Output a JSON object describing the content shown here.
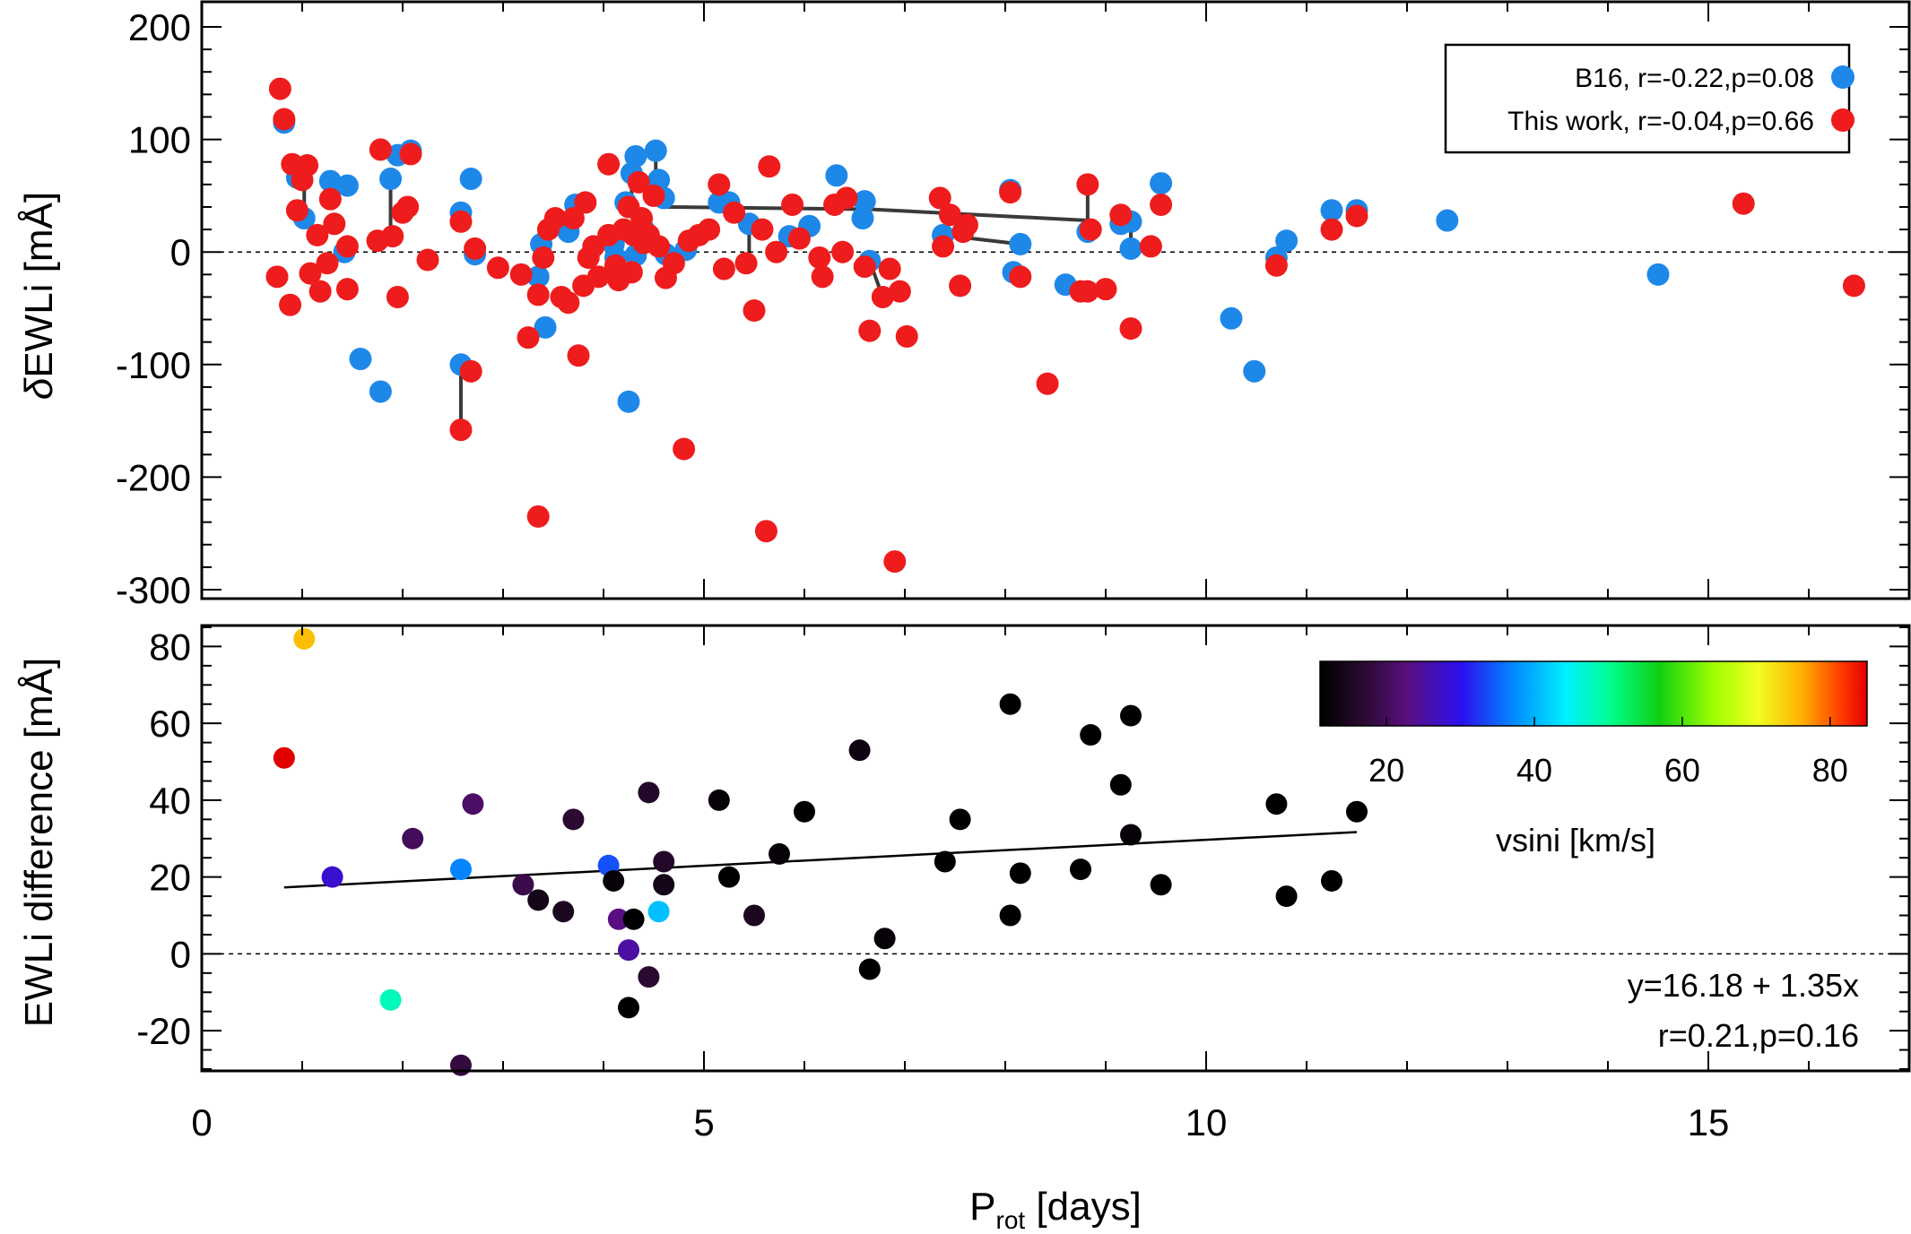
{
  "chart_data": [
    {
      "type": "scatter",
      "panel": "top",
      "ylabel_prefix": "δ",
      "ylabel_main": "EWLi [mÅ]",
      "xlim": [
        0,
        17
      ],
      "ylim": [
        -300,
        200
      ],
      "xticks": [
        0,
        5,
        10,
        15
      ],
      "yticks": [
        200,
        100,
        0,
        -100,
        -200,
        -300
      ],
      "ytick_labels": [
        "200",
        "100",
        "0",
        "-100",
        "-200",
        "-300"
      ],
      "zero_line": "dashed",
      "legend": {
        "placement": "top-right",
        "entries": [
          {
            "label": "B16, r=-0.22,p=0.08",
            "color": "#1e88e8"
          },
          {
            "label": "This work, r=-0.04,p=0.66",
            "color": "#ee1c1c"
          }
        ]
      },
      "series": [
        {
          "name": "B16",
          "color": "#1e88e8",
          "points": [
            [
              0.82,
              115
            ],
            [
              0.95,
              66
            ],
            [
              1.02,
              30
            ],
            [
              1.28,
              63
            ],
            [
              1.42,
              0
            ],
            [
              1.45,
              59
            ],
            [
              1.58,
              -95
            ],
            [
              1.78,
              -124
            ],
            [
              1.88,
              65
            ],
            [
              1.95,
              86
            ],
            [
              2.08,
              90
            ],
            [
              2.58,
              35
            ],
            [
              2.58,
              -100
            ],
            [
              2.68,
              65
            ],
            [
              2.72,
              -2
            ],
            [
              3.35,
              -22
            ],
            [
              3.38,
              7
            ],
            [
              3.42,
              -67
            ],
            [
              3.65,
              18
            ],
            [
              3.72,
              42
            ],
            [
              4.1,
              7
            ],
            [
              4.12,
              -5
            ],
            [
              4.22,
              44
            ],
            [
              4.25,
              -133
            ],
            [
              4.28,
              70
            ],
            [
              4.32,
              85
            ],
            [
              4.32,
              -3
            ],
            [
              4.4,
              20
            ],
            [
              4.52,
              90
            ],
            [
              4.55,
              64
            ],
            [
              4.6,
              48
            ],
            [
              4.62,
              -2
            ],
            [
              4.82,
              2
            ],
            [
              5.15,
              44
            ],
            [
              5.25,
              44
            ],
            [
              5.45,
              25
            ],
            [
              5.85,
              14
            ],
            [
              6.05,
              23
            ],
            [
              6.32,
              68
            ],
            [
              6.58,
              30
            ],
            [
              6.6,
              45
            ],
            [
              6.65,
              -8
            ],
            [
              7.38,
              15
            ],
            [
              8.05,
              55
            ],
            [
              8.08,
              -18
            ],
            [
              8.15,
              7
            ],
            [
              8.6,
              -29
            ],
            [
              8.82,
              18
            ],
            [
              9.15,
              25
            ],
            [
              9.25,
              3
            ],
            [
              9.25,
              27
            ],
            [
              9.55,
              61
            ],
            [
              10.25,
              -59
            ],
            [
              10.48,
              -106
            ],
            [
              10.7,
              -5
            ],
            [
              10.8,
              10
            ],
            [
              11.25,
              37
            ],
            [
              11.5,
              37
            ],
            [
              12.4,
              28
            ],
            [
              14.5,
              -20
            ]
          ]
        },
        {
          "name": "This work",
          "color": "#ee1c1c",
          "points": [
            [
              0.75,
              -22
            ],
            [
              0.78,
              145
            ],
            [
              0.82,
              118
            ],
            [
              0.88,
              -47
            ],
            [
              0.9,
              78
            ],
            [
              0.95,
              37
            ],
            [
              1.0,
              64
            ],
            [
              1.05,
              77
            ],
            [
              1.08,
              -19
            ],
            [
              1.15,
              15
            ],
            [
              1.18,
              -35
            ],
            [
              1.25,
              -10
            ],
            [
              1.28,
              47
            ],
            [
              1.32,
              25
            ],
            [
              1.45,
              -33
            ],
            [
              1.45,
              5
            ],
            [
              1.75,
              10
            ],
            [
              1.78,
              91
            ],
            [
              1.9,
              14
            ],
            [
              1.95,
              -40
            ],
            [
              2.0,
              35
            ],
            [
              2.05,
              40
            ],
            [
              2.08,
              87
            ],
            [
              2.25,
              -7
            ],
            [
              2.58,
              27
            ],
            [
              2.58,
              -158
            ],
            [
              2.68,
              -106
            ],
            [
              2.72,
              3
            ],
            [
              2.95,
              -14
            ],
            [
              3.18,
              -20
            ],
            [
              3.25,
              -76
            ],
            [
              3.35,
              -38
            ],
            [
              3.35,
              -235
            ],
            [
              3.4,
              -5
            ],
            [
              3.45,
              20
            ],
            [
              3.52,
              30
            ],
            [
              3.58,
              -40
            ],
            [
              3.65,
              -45
            ],
            [
              3.7,
              30
            ],
            [
              3.75,
              -92
            ],
            [
              3.8,
              -30
            ],
            [
              3.82,
              44
            ],
            [
              3.85,
              -5
            ],
            [
              3.9,
              5
            ],
            [
              3.95,
              -22
            ],
            [
              4.05,
              78
            ],
            [
              4.05,
              15
            ],
            [
              4.12,
              -12
            ],
            [
              4.15,
              -25
            ],
            [
              4.2,
              20
            ],
            [
              4.25,
              40
            ],
            [
              4.28,
              -18
            ],
            [
              4.3,
              15
            ],
            [
              4.35,
              62
            ],
            [
              4.38,
              30
            ],
            [
              4.4,
              8
            ],
            [
              4.45,
              15
            ],
            [
              4.5,
              50
            ],
            [
              4.55,
              5
            ],
            [
              4.62,
              -23
            ],
            [
              4.7,
              -10
            ],
            [
              4.8,
              -175
            ],
            [
              4.85,
              10
            ],
            [
              4.95,
              15
            ],
            [
              5.05,
              20
            ],
            [
              5.15,
              60
            ],
            [
              5.2,
              -15
            ],
            [
              5.3,
              35
            ],
            [
              5.42,
              -10
            ],
            [
              5.5,
              -52
            ],
            [
              5.58,
              20
            ],
            [
              5.62,
              -248
            ],
            [
              5.65,
              76
            ],
            [
              5.72,
              0
            ],
            [
              5.88,
              42
            ],
            [
              5.95,
              12
            ],
            [
              6.15,
              -5
            ],
            [
              6.18,
              -22
            ],
            [
              6.3,
              42
            ],
            [
              6.38,
              0
            ],
            [
              6.42,
              48
            ],
            [
              6.6,
              -13
            ],
            [
              6.65,
              -70
            ],
            [
              6.78,
              -40
            ],
            [
              6.9,
              -275
            ],
            [
              6.95,
              -35
            ],
            [
              7.02,
              -75
            ],
            [
              6.85,
              -15
            ],
            [
              7.35,
              48
            ],
            [
              7.38,
              5
            ],
            [
              7.45,
              33
            ],
            [
              7.55,
              -30
            ],
            [
              7.58,
              18
            ],
            [
              7.62,
              24
            ],
            [
              8.05,
              53
            ],
            [
              8.15,
              -22
            ],
            [
              8.42,
              -117
            ],
            [
              8.75,
              -35
            ],
            [
              8.82,
              -35
            ],
            [
              8.82,
              60
            ],
            [
              8.85,
              20
            ],
            [
              9.0,
              -33
            ],
            [
              9.15,
              33
            ],
            [
              9.25,
              -68
            ],
            [
              9.55,
              42
            ],
            [
              9.45,
              5
            ],
            [
              10.7,
              -12
            ],
            [
              11.25,
              20
            ],
            [
              11.5,
              32
            ],
            [
              15.35,
              43
            ],
            [
              16.45,
              -30
            ]
          ]
        }
      ],
      "connectors": [
        [
          [
            0.82,
            115
          ],
          [
            0.82,
            118
          ]
        ],
        [
          [
            1.02,
            30
          ],
          [
            1.02,
            66
          ]
        ],
        [
          [
            1.28,
            63
          ],
          [
            1.28,
            47
          ]
        ],
        [
          [
            1.88,
            65
          ],
          [
            1.88,
            14
          ]
        ],
        [
          [
            2.58,
            -100
          ],
          [
            2.58,
            -158
          ]
        ],
        [
          [
            2.58,
            35
          ],
          [
            2.58,
            27
          ]
        ],
        [
          [
            3.38,
            7
          ],
          [
            3.38,
            -38
          ]
        ],
        [
          [
            3.72,
            42
          ],
          [
            3.72,
            20
          ]
        ],
        [
          [
            4.12,
            -5
          ],
          [
            4.12,
            -25
          ]
        ],
        [
          [
            4.28,
            70
          ],
          [
            4.28,
            40
          ]
        ],
        [
          [
            4.52,
            90
          ],
          [
            4.52,
            64
          ]
        ],
        [
          [
            4.62,
            -2
          ],
          [
            4.62,
            -23
          ]
        ],
        [
          [
            4.62,
            40
          ],
          [
            6.65,
            38
          ]
        ],
        [
          [
            6.65,
            38
          ],
          [
            8.82,
            28
          ]
        ],
        [
          [
            5.45,
            25
          ],
          [
            5.45,
            -10
          ]
        ],
        [
          [
            6.65,
            -8
          ],
          [
            6.78,
            -40
          ]
        ],
        [
          [
            7.38,
            15
          ],
          [
            8.15,
            7
          ]
        ],
        [
          [
            8.82,
            60
          ],
          [
            8.82,
            18
          ]
        ],
        [
          [
            9.25,
            27
          ],
          [
            9.25,
            3
          ]
        ],
        [
          [
            10.7,
            -5
          ],
          [
            10.8,
            10
          ]
        ]
      ]
    },
    {
      "type": "scatter",
      "panel": "bottom",
      "xlabel_main": "P",
      "xlabel_sub": "rot",
      "xlabel_tail": " [days]",
      "ylabel": "EWLi difference [mÅ]",
      "xlim": [
        0,
        17
      ],
      "ylim": [
        -30,
        85
      ],
      "xticks": [
        0,
        5,
        10,
        15
      ],
      "yticks": [
        80,
        60,
        40,
        20,
        0,
        -20
      ],
      "zero_line": "dashed",
      "points": [
        [
          1.02,
          82,
          75
        ],
        [
          0.82,
          51,
          85
        ],
        [
          1.3,
          20,
          28
        ],
        [
          2.1,
          30,
          20
        ],
        [
          2.7,
          39,
          21
        ],
        [
          2.58,
          22,
          37
        ],
        [
          1.88,
          -12,
          48
        ],
        [
          2.58,
          -29,
          18
        ],
        [
          3.2,
          18,
          19
        ],
        [
          3.35,
          14,
          14
        ],
        [
          3.6,
          11,
          15
        ],
        [
          3.7,
          35,
          17
        ],
        [
          4.05,
          23,
          34
        ],
        [
          4.1,
          19,
          12
        ],
        [
          4.15,
          9,
          23
        ],
        [
          4.25,
          1,
          25
        ],
        [
          4.3,
          9,
          10
        ],
        [
          4.25,
          -14,
          10
        ],
        [
          4.45,
          42,
          16
        ],
        [
          4.45,
          -6,
          17
        ],
        [
          4.55,
          11,
          41
        ],
        [
          4.6,
          24,
          16
        ],
        [
          4.6,
          18,
          14
        ],
        [
          5.15,
          40,
          12
        ],
        [
          5.25,
          20,
          10
        ],
        [
          5.5,
          10,
          15
        ],
        [
          5.75,
          26,
          12
        ],
        [
          6.0,
          37,
          10
        ],
        [
          6.55,
          53,
          13
        ],
        [
          6.65,
          -4,
          10
        ],
        [
          6.8,
          4,
          12
        ],
        [
          7.4,
          24,
          10
        ],
        [
          7.55,
          35,
          10
        ],
        [
          8.05,
          65,
          10
        ],
        [
          8.05,
          10,
          10
        ],
        [
          8.15,
          21,
          10
        ],
        [
          8.75,
          22,
          10
        ],
        [
          8.85,
          57,
          10
        ],
        [
          9.15,
          44,
          10
        ],
        [
          9.25,
          62,
          10
        ],
        [
          9.25,
          31,
          12
        ],
        [
          9.55,
          18,
          10
        ],
        [
          10.7,
          39,
          10
        ],
        [
          10.8,
          15,
          10
        ],
        [
          11.25,
          19,
          10
        ],
        [
          11.5,
          37,
          10
        ]
      ],
      "fit": {
        "x": [
          0.82,
          11.5
        ],
        "intercept": 16.18,
        "slope": 1.35
      },
      "annotations": [
        "y=16.18 + 1.35x",
        "r=0.21,p=0.16"
      ],
      "colorbar": {
        "label": "vsini [km/s]",
        "range": [
          11,
          85
        ],
        "ticks": [
          20,
          40,
          60,
          80
        ],
        "placement": "top-right"
      }
    }
  ]
}
